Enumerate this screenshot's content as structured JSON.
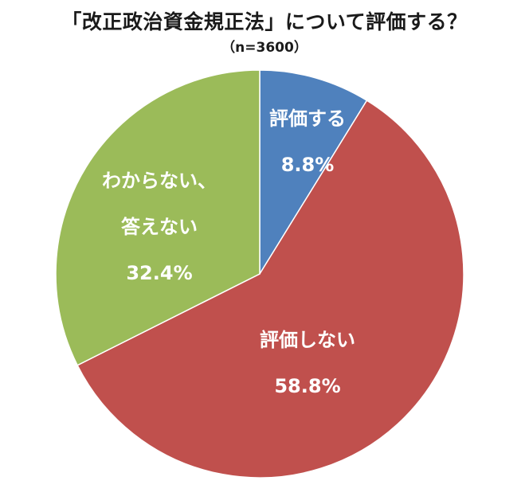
{
  "chart_data": {
    "type": "pie",
    "title": "「改正政治資金規正法」について評価する？",
    "subtitle": "（n=3600）",
    "slices": [
      {
        "label_lines": [
          "評価する"
        ],
        "value_label": "8.8%",
        "value": 8.8,
        "color": "#4f81bd"
      },
      {
        "label_lines": [
          "評価しない"
        ],
        "value_label": "58.8%",
        "value": 58.8,
        "color": "#c0504d"
      },
      {
        "label_lines": [
          "わからない、",
          "答えない"
        ],
        "value_label": "32.4%",
        "value": 32.4,
        "color": "#9bbb59"
      }
    ]
  }
}
